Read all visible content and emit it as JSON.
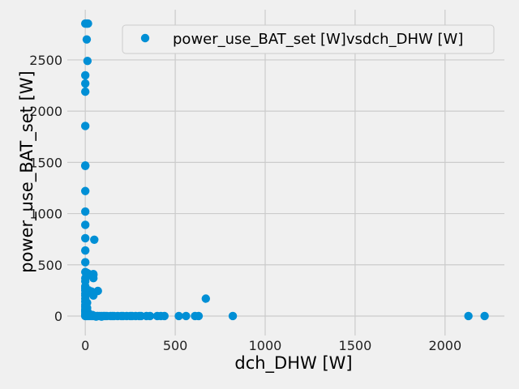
{
  "chart_data": {
    "type": "scatter",
    "title": "",
    "xlabel": "dch_DHW [W]",
    "ylabel": "power_use_BAT_set [W]",
    "xlim": [
      -100,
      2330
    ],
    "ylim": [
      -190,
      2990
    ],
    "xticks": [
      0,
      500,
      1000,
      1500,
      2000
    ],
    "yticks": [
      0,
      500,
      1000,
      1500,
      2000,
      2500
    ],
    "grid": true,
    "legend": {
      "position": "top-right",
      "label": "power_use_BAT_set [W]vsdch_DHW [W]"
    },
    "series": [
      {
        "name": "power_use_BAT_set [W]vsdch_DHW [W]",
        "color": "#008fd5",
        "points": [
          [
            0,
            2855
          ],
          [
            5,
            2855
          ],
          [
            10,
            2855
          ],
          [
            15,
            2855
          ],
          [
            8,
            2700
          ],
          [
            12,
            2490
          ],
          [
            0,
            2350
          ],
          [
            0,
            2270
          ],
          [
            0,
            2190
          ],
          [
            0,
            1855
          ],
          [
            0,
            1470
          ],
          [
            0,
            1465
          ],
          [
            0,
            1220
          ],
          [
            0,
            1020
          ],
          [
            0,
            890
          ],
          [
            0,
            760
          ],
          [
            50,
            745
          ],
          [
            0,
            640
          ],
          [
            0,
            525
          ],
          [
            0,
            430
          ],
          [
            10,
            420
          ],
          [
            20,
            410
          ],
          [
            45,
            410
          ],
          [
            45,
            400
          ],
          [
            0,
            370
          ],
          [
            45,
            370
          ],
          [
            0,
            340
          ],
          [
            0,
            290
          ],
          [
            0,
            270
          ],
          [
            0,
            250
          ],
          [
            10,
            250
          ],
          [
            20,
            250
          ],
          [
            35,
            240
          ],
          [
            70,
            245
          ],
          [
            0,
            220
          ],
          [
            40,
            215
          ],
          [
            0,
            200
          ],
          [
            45,
            200
          ],
          [
            0,
            170
          ],
          [
            670,
            170
          ],
          [
            0,
            140
          ],
          [
            10,
            130
          ],
          [
            0,
            110
          ],
          [
            0,
            90
          ],
          [
            10,
            80
          ],
          [
            0,
            65
          ],
          [
            0,
            50
          ],
          [
            0,
            40
          ],
          [
            15,
            35
          ],
          [
            0,
            20
          ],
          [
            25,
            15
          ],
          [
            40,
            10
          ],
          [
            0,
            5
          ],
          [
            10,
            5
          ],
          [
            20,
            5
          ],
          [
            30,
            5
          ],
          [
            35,
            0
          ],
          [
            45,
            0
          ],
          [
            55,
            0
          ],
          [
            65,
            0
          ],
          [
            70,
            0
          ],
          [
            80,
            0
          ],
          [
            90,
            0
          ],
          [
            100,
            0
          ],
          [
            110,
            0
          ],
          [
            120,
            0
          ],
          [
            140,
            0
          ],
          [
            150,
            0
          ],
          [
            160,
            0
          ],
          [
            180,
            0
          ],
          [
            200,
            0
          ],
          [
            210,
            0
          ],
          [
            230,
            0
          ],
          [
            250,
            0
          ],
          [
            260,
            0
          ],
          [
            280,
            0
          ],
          [
            300,
            0
          ],
          [
            310,
            0
          ],
          [
            340,
            0
          ],
          [
            360,
            0
          ],
          [
            400,
            0
          ],
          [
            420,
            0
          ],
          [
            440,
            0
          ],
          [
            520,
            0
          ],
          [
            560,
            0
          ],
          [
            610,
            0
          ],
          [
            630,
            0
          ],
          [
            820,
            0
          ],
          [
            2130,
            0
          ],
          [
            2220,
            0
          ],
          [
            0,
            0
          ],
          [
            5,
            0
          ],
          [
            15,
            0
          ],
          [
            25,
            0
          ],
          [
            60,
            -5
          ],
          [
            90,
            -5
          ]
        ]
      }
    ]
  }
}
